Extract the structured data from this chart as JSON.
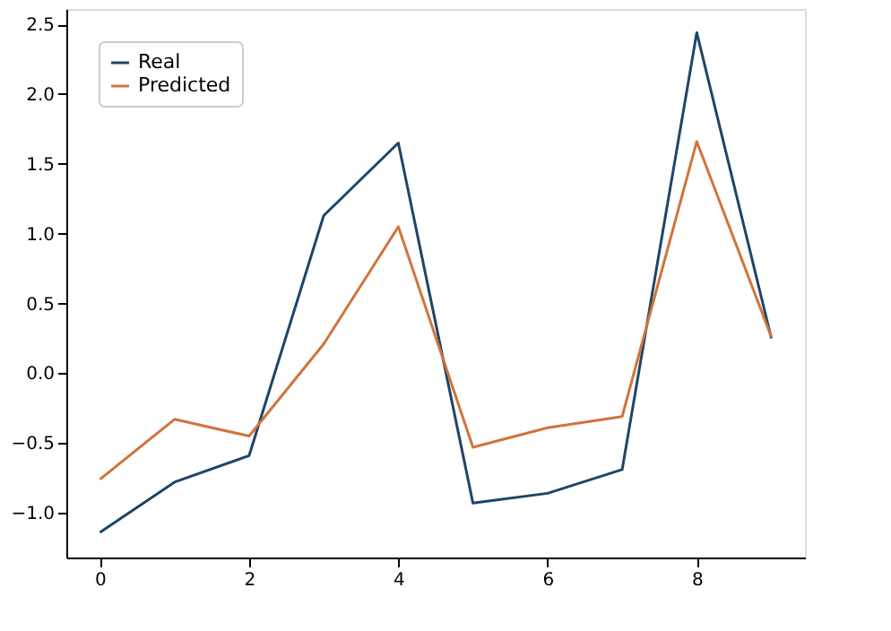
{
  "chart_data": {
    "type": "line",
    "x": [
      0,
      1,
      2,
      3,
      4,
      5,
      6,
      7,
      8,
      9
    ],
    "series": [
      {
        "name": "Real",
        "color": "#1f4468",
        "values": [
          -1.14,
          -0.78,
          -0.59,
          1.13,
          1.65,
          -0.93,
          -0.86,
          -0.69,
          2.44,
          0.25
        ]
      },
      {
        "name": "Predicted",
        "color": "#d0743c",
        "values": [
          -0.76,
          -0.33,
          -0.45,
          0.21,
          1.05,
          -0.53,
          -0.39,
          -0.31,
          1.66,
          0.26
        ]
      }
    ],
    "xlim": [
      -0.45,
      9.45
    ],
    "xticks": [
      0,
      2,
      4,
      6,
      8
    ],
    "ylim": [
      -1.32,
      2.61
    ],
    "yticks": [
      {
        "value": -1,
        "label": "−1.0"
      },
      {
        "value": -0.5,
        "label": "−0.5"
      },
      {
        "value": 0,
        "label": "0.0"
      },
      {
        "value": 0.5,
        "label": "0.5"
      },
      {
        "value": 1,
        "label": "1.0"
      },
      {
        "value": 1.5,
        "label": "1.5"
      },
      {
        "value": 2,
        "label": "2.0"
      },
      {
        "value": 2.5,
        "label": "2.5"
      }
    ],
    "grid": false,
    "legend": "top left",
    "marker": "none",
    "line_style": "solid"
  }
}
